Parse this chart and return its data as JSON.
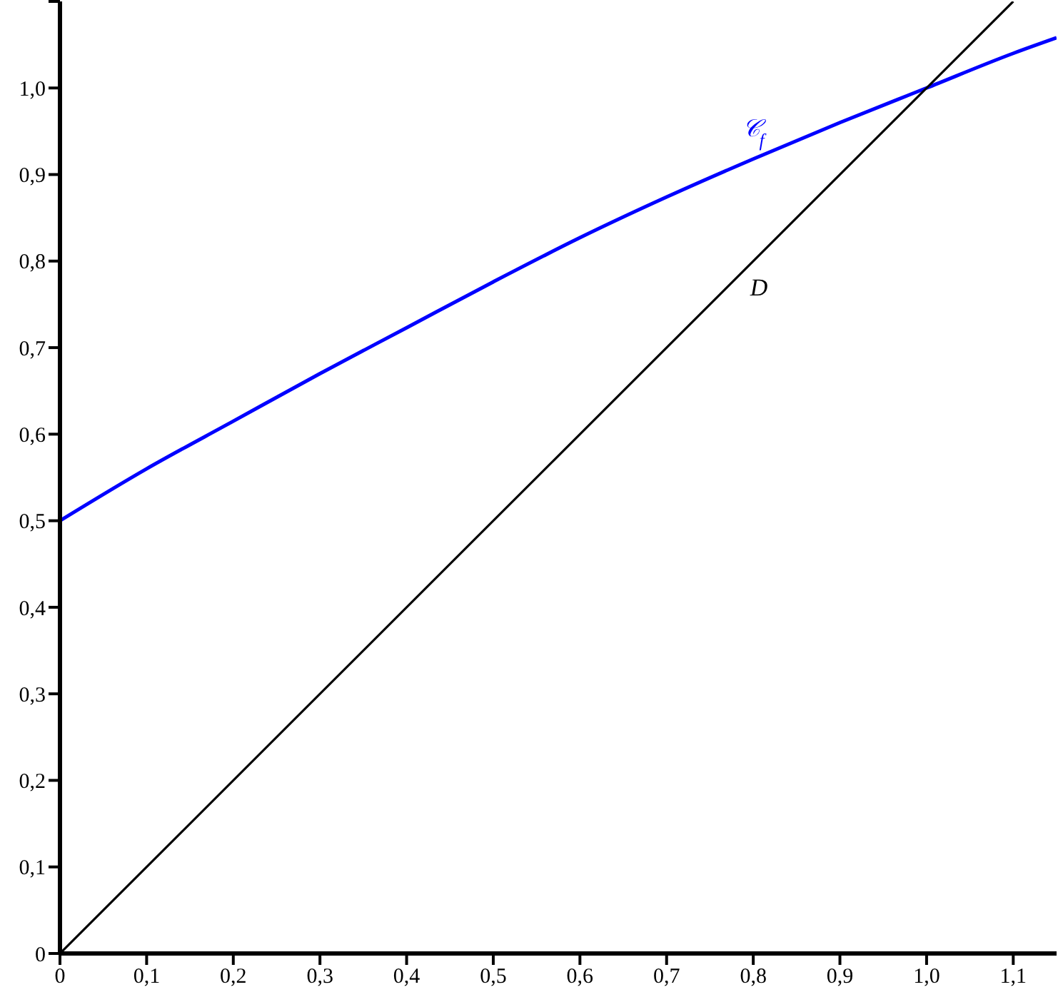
{
  "chart_data": {
    "type": "line",
    "xlim": [
      0,
      1.15
    ],
    "ylim": [
      0,
      1.1
    ],
    "xticks": [
      0,
      {
        "value": 0.1,
        "label": "0,1"
      },
      {
        "value": 0.2,
        "label": "0,2"
      },
      {
        "value": 0.3,
        "label": "0,3"
      },
      {
        "value": 0.4,
        "label": "0,4"
      },
      {
        "value": 0.5,
        "label": "0,5"
      },
      {
        "value": 0.6,
        "label": "0,6"
      },
      {
        "value": 0.7,
        "label": "0,7"
      },
      {
        "value": 0.8,
        "label": "0,8"
      },
      {
        "value": 0.9,
        "label": "0,9"
      },
      {
        "value": 1.0,
        "label": "1,0"
      },
      {
        "value": 1.1,
        "label": "1,1"
      }
    ],
    "yticks": [
      0,
      {
        "value": 0.1,
        "label": "0,1"
      },
      {
        "value": 0.2,
        "label": "0,2"
      },
      {
        "value": 0.3,
        "label": "0,3"
      },
      {
        "value": 0.4,
        "label": "0,4"
      },
      {
        "value": 0.5,
        "label": "0,5"
      },
      {
        "value": 0.6,
        "label": "0,6"
      },
      {
        "value": 0.7,
        "label": "0,7"
      },
      {
        "value": 0.8,
        "label": "0,8"
      },
      {
        "value": 0.9,
        "label": "0,9"
      },
      {
        "value": 1.0,
        "label": "1,0"
      },
      {
        "value": 1.1,
        "label": null
      }
    ],
    "series": [
      {
        "name": "𝒞$_{f}$",
        "color": "#0000ff",
        "x": [
          0,
          0.1,
          0.2,
          0.3,
          0.4,
          0.5,
          0.6,
          0.7,
          0.8,
          0.9,
          1.0,
          1.1,
          1.15
        ],
        "values": [
          0.5,
          0.56,
          0.615,
          0.67,
          0.723,
          0.776,
          0.827,
          0.874,
          0.918,
          0.96,
          1.0,
          1.04,
          1.058
        ]
      },
      {
        "name": "D",
        "color": "#000000",
        "x": [
          0,
          0.8,
          1.1
        ],
        "values": [
          0,
          0.8,
          1.1
        ]
      }
    ],
    "grid": false,
    "legend": false,
    "marker": "none",
    "line_style": "solid"
  }
}
